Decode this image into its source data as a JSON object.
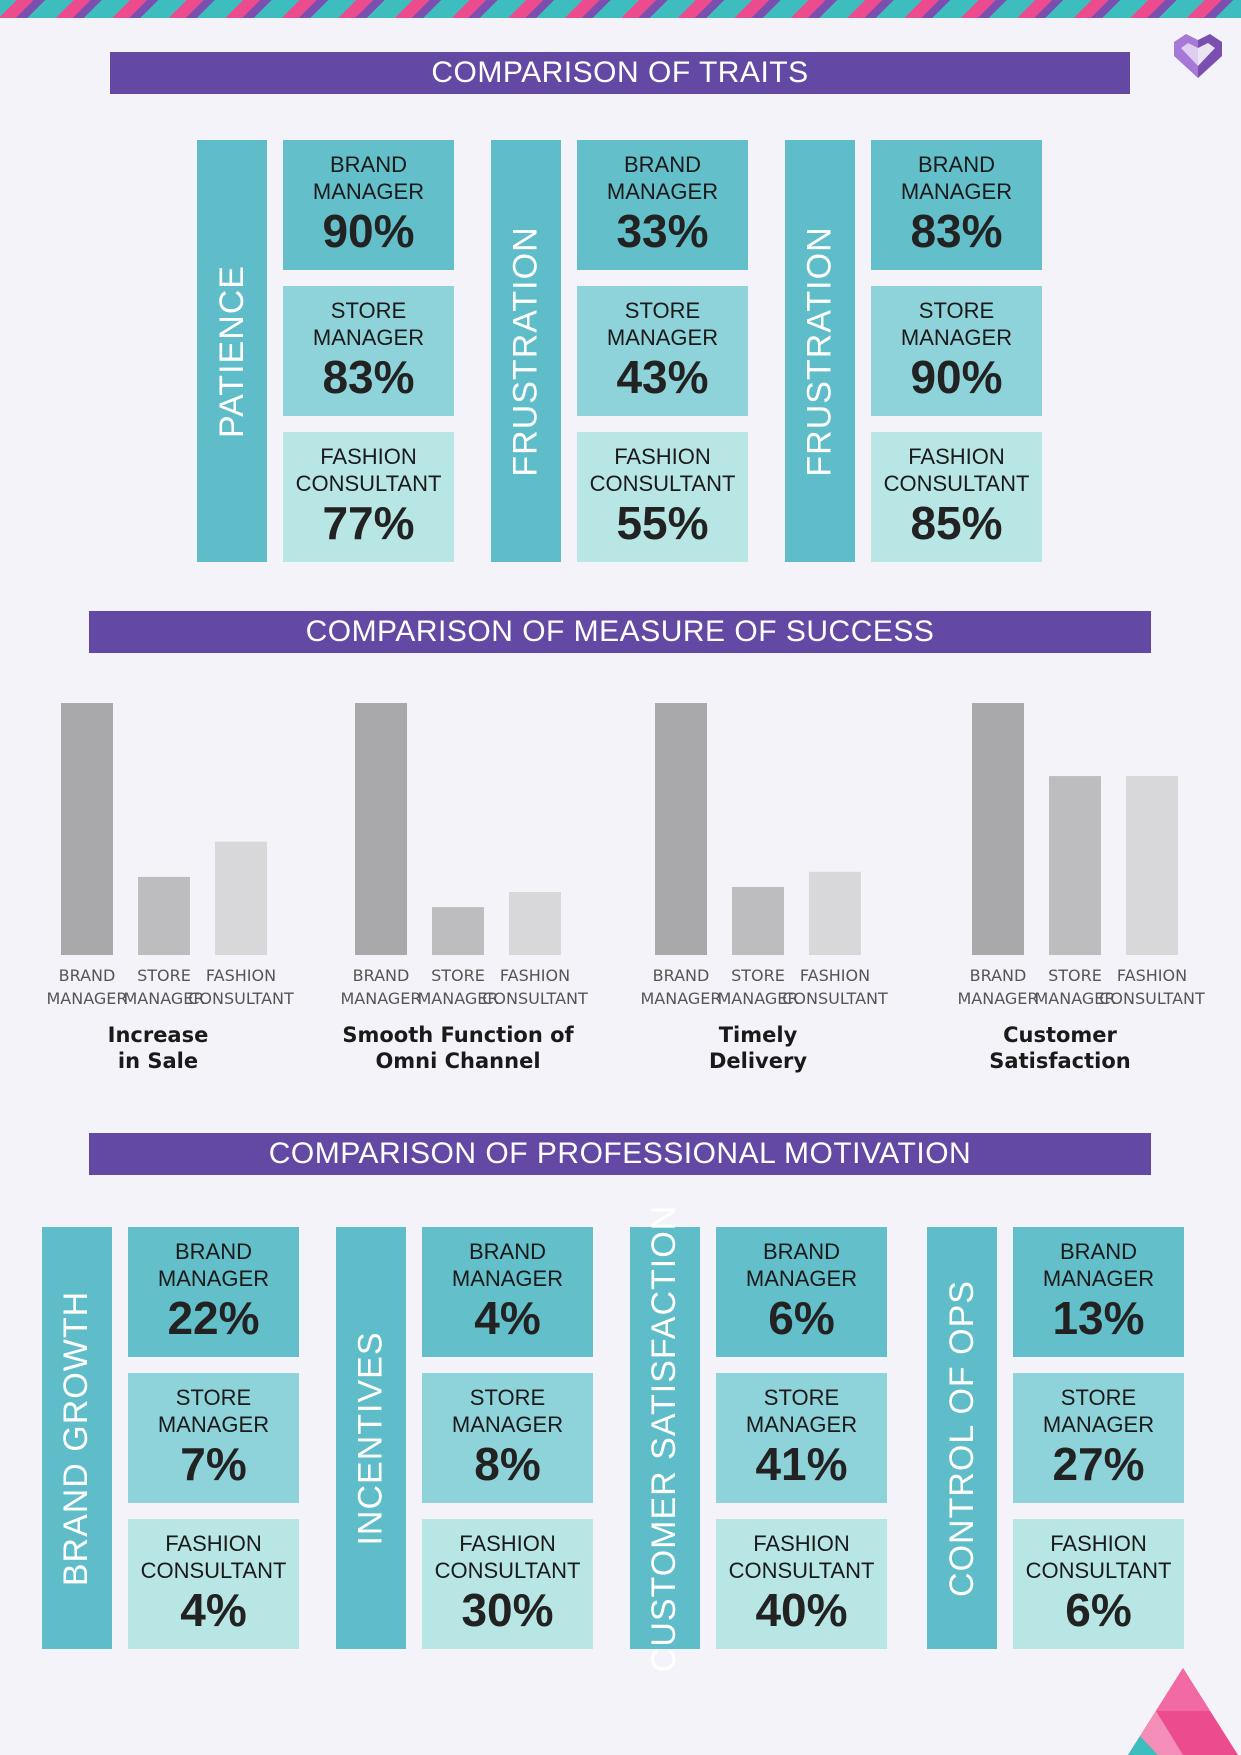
{
  "decor": {
    "logo": "heart-logo-icon",
    "corner": "triangle-pattern-icon",
    "accent": "#6349a3",
    "teal": "#5ebdc8",
    "pink": "#ec4c8d"
  },
  "sections": {
    "traits": "COMPARISON OF TRAITS",
    "success": "COMPARISON OF MEASURE OF SUCCESS",
    "motivation": "COMPARISON OF PROFESSIONAL MOTIVATION"
  },
  "traits": [
    {
      "label": "PATIENCE",
      "values": [
        {
          "role": "BRAND\nMANAGER",
          "pct": "90%"
        },
        {
          "role": "STORE\nMANAGER",
          "pct": "83%"
        },
        {
          "role": "FASHION\nCONSULTANT",
          "pct": "77%"
        }
      ]
    },
    {
      "label": "FRUSTRATION",
      "values": [
        {
          "role": "BRAND\nMANAGER",
          "pct": "33%"
        },
        {
          "role": "STORE\nMANAGER",
          "pct": "43%"
        },
        {
          "role": "FASHION\nCONSULTANT",
          "pct": "55%"
        }
      ]
    },
    {
      "label": "FRUSTRATION",
      "values": [
        {
          "role": "BRAND\nMANAGER",
          "pct": "83%"
        },
        {
          "role": "STORE\nMANAGER",
          "pct": "90%"
        },
        {
          "role": "FASHION\nCONSULTANT",
          "pct": "85%"
        }
      ]
    }
  ],
  "motivation": [
    {
      "label": "BRAND GROWTH",
      "values": [
        {
          "role": "BRAND\nMANAGER",
          "pct": "22%"
        },
        {
          "role": "STORE\nMANAGER",
          "pct": "7%"
        },
        {
          "role": "FASHION\nCONSULTANT",
          "pct": "4%"
        }
      ]
    },
    {
      "label": "INCENTIVES",
      "values": [
        {
          "role": "BRAND\nMANAGER",
          "pct": "4%"
        },
        {
          "role": "STORE\nMANAGER",
          "pct": "8%"
        },
        {
          "role": "FASHION\nCONSULTANT",
          "pct": "30%"
        }
      ]
    },
    {
      "label": "CUSTOMER SATISFACTION",
      "values": [
        {
          "role": "BRAND\nMANAGER",
          "pct": "6%"
        },
        {
          "role": "STORE\nMANAGER",
          "pct": "41%"
        },
        {
          "role": "FASHION\nCONSULTANT",
          "pct": "40%"
        }
      ]
    },
    {
      "label": "CONTROL OF OPS",
      "values": [
        {
          "role": "BRAND\nMANAGER",
          "pct": "13%"
        },
        {
          "role": "STORE\nMANAGER",
          "pct": "27%"
        },
        {
          "role": "FASHION\nCONSULTANT",
          "pct": "6%"
        }
      ]
    }
  ],
  "chart_data": {
    "type": "bar",
    "categories": [
      "BRAND MANAGER",
      "STORE MANAGER",
      "FASHION CONSULTANT"
    ],
    "bar_colors": [
      "#a9a8aa",
      "#bdbcbe",
      "#d8d7d9"
    ],
    "ylim": [
      0,
      100
    ],
    "groups": [
      {
        "title": "Increase\nin Sale",
        "values": [
          100,
          31,
          45
        ]
      },
      {
        "title": "Smooth Function of\nOmni Channel",
        "values": [
          100,
          19,
          25
        ]
      },
      {
        "title": "Timely\nDelivery",
        "values": [
          100,
          27,
          33
        ]
      },
      {
        "title": "Customer\nSatisfaction",
        "values": [
          100,
          71,
          71
        ]
      }
    ]
  }
}
